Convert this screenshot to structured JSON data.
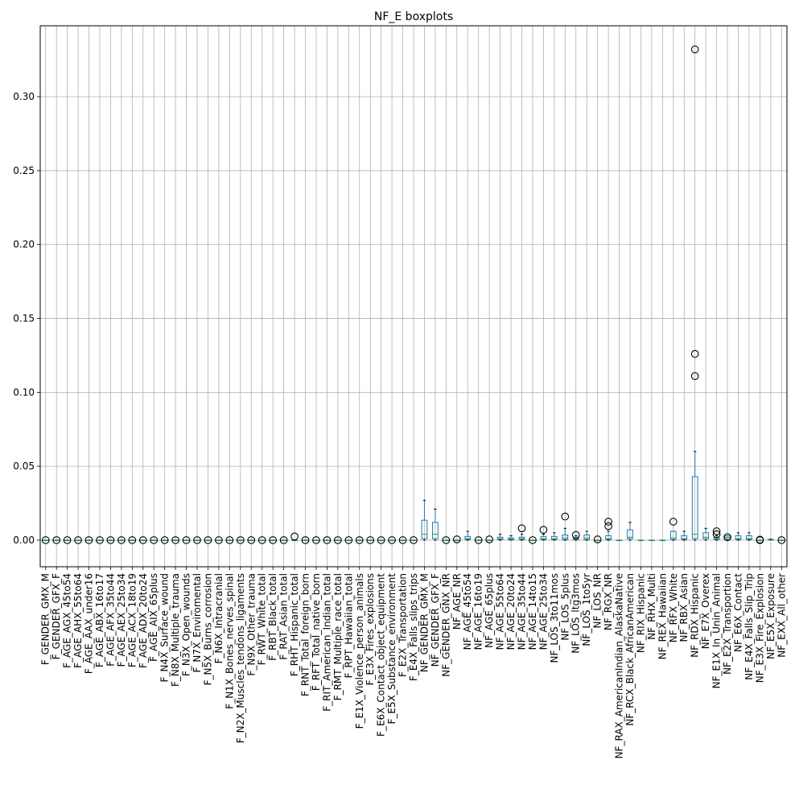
{
  "chart_data": {
    "type": "boxplot",
    "title": "NF_E boxplots",
    "xlabel": "",
    "ylabel": "",
    "ylim": [
      -0.018,
      0.348
    ],
    "yticks": [
      0.0,
      0.05,
      0.1,
      0.15,
      0.2,
      0.25,
      0.3
    ],
    "ytick_labels": [
      "0.00",
      "0.05",
      "0.10",
      "0.15",
      "0.20",
      "0.25",
      "0.30"
    ],
    "grid": true,
    "colors": {
      "box": "#1f77b4",
      "median": "#2ca02c",
      "grid": "#b0b0b0",
      "outlier_edge": "#000000"
    },
    "boxes": [
      {
        "label": "F_GENDER_GMX_M",
        "stats": [
          0,
          0,
          0,
          0,
          0
        ],
        "outliers": [
          0
        ]
      },
      {
        "label": "F_GENDER_GFX_F",
        "stats": [
          0,
          0,
          0,
          0,
          0
        ],
        "outliers": [
          0
        ]
      },
      {
        "label": "F_AGE_AGX_45to54",
        "stats": [
          0,
          0,
          0,
          0,
          0
        ],
        "outliers": [
          0
        ]
      },
      {
        "label": "F_AGE_AHX_55to64",
        "stats": [
          0,
          0,
          0,
          0,
          0
        ],
        "outliers": [
          0
        ]
      },
      {
        "label": "F_AGE_AAX_under16",
        "stats": [
          0,
          0,
          0,
          0,
          0
        ],
        "outliers": [
          0
        ]
      },
      {
        "label": "F_AGE_ABX_16to17",
        "stats": [
          0,
          0,
          0,
          0,
          0
        ],
        "outliers": [
          0
        ]
      },
      {
        "label": "F_AGE_AFX_35to44",
        "stats": [
          0,
          0,
          0,
          0,
          0
        ],
        "outliers": [
          0
        ]
      },
      {
        "label": "F_AGE_AEX_25to34",
        "stats": [
          0,
          0,
          0,
          0,
          0
        ],
        "outliers": [
          0
        ]
      },
      {
        "label": "F_AGE_ACX_18to19",
        "stats": [
          0,
          0,
          0,
          0,
          0
        ],
        "outliers": [
          0
        ]
      },
      {
        "label": "F_AGE_ADX_20to24",
        "stats": [
          0,
          0,
          0,
          0,
          0
        ],
        "outliers": [
          0
        ]
      },
      {
        "label": "F_AGE_AIX_65plus",
        "stats": [
          0,
          0,
          0,
          0,
          0
        ],
        "outliers": [
          0
        ]
      },
      {
        "label": "F_N4X_Surface_wound",
        "stats": [
          0,
          0,
          0,
          0,
          0
        ],
        "outliers": [
          0
        ]
      },
      {
        "label": "F_N8X_Multiple_trauma",
        "stats": [
          0,
          0,
          0,
          0,
          0
        ],
        "outliers": [
          0
        ]
      },
      {
        "label": "F_N3X_Open_wounds",
        "stats": [
          0,
          0,
          0,
          0,
          0
        ],
        "outliers": [
          0
        ]
      },
      {
        "label": "F_N7X_Enviromental",
        "stats": [
          0,
          0,
          0,
          0,
          0
        ],
        "outliers": [
          0
        ]
      },
      {
        "label": "F_N5X_Burns_corrosion",
        "stats": [
          0,
          0,
          0,
          0,
          0
        ],
        "outliers": [
          0
        ]
      },
      {
        "label": "F_N6X_Intracranial",
        "stats": [
          0,
          0,
          0,
          0,
          0
        ],
        "outliers": [
          0
        ]
      },
      {
        "label": "F_N1X_Bones_nerves_spinal",
        "stats": [
          0,
          0,
          0,
          0,
          0
        ],
        "outliers": [
          0
        ]
      },
      {
        "label": "F_N2X_Muscles_tendons_ligaments",
        "stats": [
          0,
          0,
          0,
          0,
          0
        ],
        "outliers": [
          0
        ]
      },
      {
        "label": "F_N9X_Other_trauma",
        "stats": [
          0,
          0,
          0,
          0,
          0
        ],
        "outliers": [
          0
        ]
      },
      {
        "label": "F_RWT_White_total",
        "stats": [
          0,
          0,
          0,
          0,
          0
        ],
        "outliers": [
          0
        ]
      },
      {
        "label": "F_RBT_Black_total",
        "stats": [
          0,
          0,
          0,
          0,
          0
        ],
        "outliers": [
          0
        ]
      },
      {
        "label": "F_RAT_Asian_total",
        "stats": [
          0,
          0,
          0,
          0,
          0
        ],
        "outliers": [
          0
        ]
      },
      {
        "label": "F_RHT_Hispanic_total",
        "stats": [
          0,
          0,
          0,
          0,
          0
        ],
        "outliers": [
          0.0025
        ]
      },
      {
        "label": "F_RNT_Total_foreign_born",
        "stats": [
          0,
          0,
          0,
          0,
          0
        ],
        "outliers": [
          0
        ]
      },
      {
        "label": "F_RFT_Total_native_born",
        "stats": [
          0,
          0,
          0,
          0,
          0
        ],
        "outliers": [
          0
        ]
      },
      {
        "label": "F_RIT_American_Indian_total",
        "stats": [
          0,
          0,
          0,
          0,
          0
        ],
        "outliers": [
          0
        ]
      },
      {
        "label": "F_RMT_Multiple_race_total",
        "stats": [
          0,
          0,
          0,
          0,
          0
        ],
        "outliers": [
          0
        ]
      },
      {
        "label": "F_RPT_Hawaiian_total",
        "stats": [
          0,
          0,
          0,
          0,
          0
        ],
        "outliers": [
          0
        ]
      },
      {
        "label": "F_E1X_Violence_person_animals",
        "stats": [
          0,
          0,
          0,
          0,
          0
        ],
        "outliers": [
          0
        ]
      },
      {
        "label": "F_E3X_Fires_explosions",
        "stats": [
          0,
          0,
          0,
          0,
          0
        ],
        "outliers": [
          0
        ]
      },
      {
        "label": "F_E6X_Contact_object_equipment",
        "stats": [
          0,
          0,
          0,
          0,
          0
        ],
        "outliers": [
          0
        ]
      },
      {
        "label": "F_E5X_Substance_environment",
        "stats": [
          0,
          0,
          0,
          0,
          0
        ],
        "outliers": [
          0
        ]
      },
      {
        "label": "F_E2X_Transportation",
        "stats": [
          0,
          0,
          0,
          0,
          0
        ],
        "outliers": [
          0
        ]
      },
      {
        "label": "F_E4X_Falls_slips_trips",
        "stats": [
          0,
          0,
          0,
          0,
          0
        ],
        "outliers": [
          0
        ]
      },
      {
        "label": "NF_GENDER_GMX_M",
        "stats": [
          0,
          0.001,
          0.004,
          0.0135,
          0.027
        ],
        "outliers": []
      },
      {
        "label": "NF_GENDER_GFX_F",
        "stats": [
          0,
          0.001,
          0.004,
          0.012,
          0.021
        ],
        "outliers": []
      },
      {
        "label": "NF_GENDER_GNX_NR",
        "stats": [
          0,
          0,
          0,
          0,
          0
        ],
        "outliers": [
          0
        ]
      },
      {
        "label": "NF_AGE_NR",
        "stats": [
          0,
          0,
          0,
          0,
          0
        ],
        "outliers": [
          0.0005
        ]
      },
      {
        "label": "NF_AGE_45to54",
        "stats": [
          0,
          0.0005,
          0.001,
          0.0025,
          0.006
        ],
        "outliers": []
      },
      {
        "label": "NF_AGE_16to19",
        "stats": [
          0,
          0,
          0,
          0,
          0
        ],
        "outliers": [
          0
        ]
      },
      {
        "label": "NF_AGE_65plus",
        "stats": [
          0,
          0,
          0,
          0,
          0
        ],
        "outliers": [
          0.0005
        ]
      },
      {
        "label": "NF_AGE_55to64",
        "stats": [
          0,
          0.0005,
          0.001,
          0.002,
          0.004
        ],
        "outliers": []
      },
      {
        "label": "NF_AGE_20to24",
        "stats": [
          0,
          0.0003,
          0.0008,
          0.0015,
          0.003
        ],
        "outliers": []
      },
      {
        "label": "NF_AGE_35to44",
        "stats": [
          0,
          0.0005,
          0.001,
          0.002,
          0.004
        ],
        "outliers": [
          0.008
        ]
      },
      {
        "label": "NF_AGE_14to15",
        "stats": [
          0,
          0,
          0,
          0,
          0
        ],
        "outliers": [
          0
        ]
      },
      {
        "label": "NF_AGE_25to34",
        "stats": [
          0,
          0.0005,
          0.001,
          0.0025,
          0.004
        ],
        "outliers": [
          0.007
        ]
      },
      {
        "label": "NF_LOS_3to11mos",
        "stats": [
          0,
          0.0005,
          0.001,
          0.0025,
          0.005
        ],
        "outliers": []
      },
      {
        "label": "NF_LOS_5plus",
        "stats": [
          0,
          0.0005,
          0.0015,
          0.0035,
          0.008
        ],
        "outliers": [
          0.016
        ]
      },
      {
        "label": "NF_LOS_ltg3mos",
        "stats": [
          0,
          0.0005,
          0.001,
          0.002,
          0.003
        ],
        "outliers": [
          0.0035
        ]
      },
      {
        "label": "NF_LOS_1to5yr",
        "stats": [
          0,
          0.0005,
          0.0015,
          0.0035,
          0.006
        ],
        "outliers": []
      },
      {
        "label": "NF_LOS_NR",
        "stats": [
          0,
          0,
          0,
          0,
          0
        ],
        "outliers": [
          0.0005
        ]
      },
      {
        "label": "NF_RGX_NR",
        "stats": [
          0,
          0.0005,
          0.001,
          0.003,
          0.006
        ],
        "outliers": [
          0.0095,
          0.0125
        ]
      },
      {
        "label": "NF_RAX_AmericanIndian_AlaskaNative",
        "stats": [
          0,
          0,
          0,
          0,
          0
        ],
        "outliers": []
      },
      {
        "label": "NF_RCX_Black_AfricanAmerican",
        "stats": [
          0,
          0.001,
          0.002,
          0.007,
          0.012
        ],
        "outliers": []
      },
      {
        "label": "NF_RIX_Hispanic",
        "stats": [
          0,
          0,
          0,
          0,
          0
        ],
        "outliers": []
      },
      {
        "label": "NF_RHX_Multi",
        "stats": [
          0,
          0,
          0,
          0,
          0
        ],
        "outliers": []
      },
      {
        "label": "NF_REX_Hawaiian",
        "stats": [
          0,
          0,
          0,
          0,
          0
        ],
        "outliers": []
      },
      {
        "label": "NF_RFX_White",
        "stats": [
          0,
          0.0005,
          0.0015,
          0.006,
          0.006
        ],
        "outliers": [
          0.0125
        ]
      },
      {
        "label": "NF_RBX_Asian",
        "stats": [
          0,
          0.0005,
          0.001,
          0.003,
          0.006
        ],
        "outliers": []
      },
      {
        "label": "NF_RDX_Hispanic",
        "stats": [
          0,
          0.001,
          0.004,
          0.043,
          0.06
        ],
        "outliers": [
          0.111,
          0.126,
          0.332
        ]
      },
      {
        "label": "NF_E7X_Overex",
        "stats": [
          0,
          0.001,
          0.002,
          0.005,
          0.008
        ],
        "outliers": []
      },
      {
        "label": "NF_E1X_In_Unin_Animal",
        "stats": [
          0,
          0.0005,
          0.001,
          0.002,
          0.003
        ],
        "outliers": [
          0.004,
          0.006
        ]
      },
      {
        "label": "NF_E2X_Transportion",
        "stats": [
          0,
          0.001,
          0.002,
          0.003,
          0.003
        ],
        "outliers": [
          0.002
        ]
      },
      {
        "label": "NF_E6X_Contact",
        "stats": [
          0,
          0.0005,
          0.001,
          0.003,
          0.005
        ],
        "outliers": []
      },
      {
        "label": "NF_E4X_Falls_Slip_Trip",
        "stats": [
          0,
          0.0005,
          0.001,
          0.003,
          0.005
        ],
        "outliers": []
      },
      {
        "label": "NF_E3X_Fire_Explosion",
        "stats": [
          0,
          0,
          0,
          0,
          0
        ],
        "outliers": [
          0,
          0.0003
        ]
      },
      {
        "label": "NF_E5X_Exposure",
        "stats": [
          0,
          0,
          0.0003,
          0.0005,
          0.0008
        ],
        "outliers": []
      },
      {
        "label": "NF_EXX_All_other",
        "stats": [
          0,
          0,
          0,
          0,
          0
        ],
        "outliers": [
          0
        ]
      }
    ]
  }
}
